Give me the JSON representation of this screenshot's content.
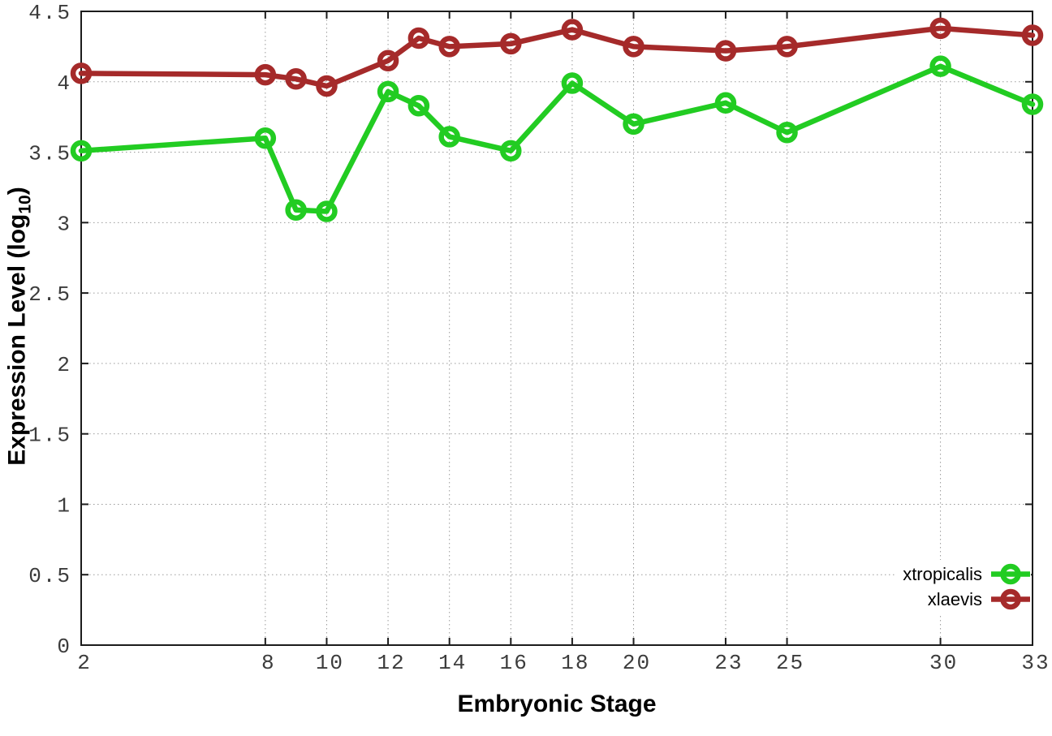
{
  "chart_data": {
    "type": "line",
    "title": "",
    "xlabel": "Embryonic Stage",
    "ylabel": "Expression Level (log10)",
    "ylabel_parts": {
      "prefix": "Expression Level (log",
      "sub": "10",
      "suffix": ")"
    },
    "xlim": [
      2,
      33
    ],
    "ylim": [
      0,
      4.5
    ],
    "grid": true,
    "legend_position": "bottom-right",
    "x_ticks": [
      {
        "v": 2,
        "label": "2"
      },
      {
        "v": 8,
        "label": "8"
      },
      {
        "v": 10,
        "label": "10"
      },
      {
        "v": 12,
        "label": "12"
      },
      {
        "v": 14,
        "label": "14"
      },
      {
        "v": 16,
        "label": "16"
      },
      {
        "v": 18,
        "label": "18"
      },
      {
        "v": 20,
        "label": "20"
      },
      {
        "v": 23,
        "label": "23"
      },
      {
        "v": 25,
        "label": "25"
      },
      {
        "v": 30,
        "label": "30"
      },
      {
        "v": 33,
        "label": "33"
      }
    ],
    "y_ticks": [
      {
        "v": 0,
        "label": "0"
      },
      {
        "v": 0.5,
        "label": "0.5"
      },
      {
        "v": 1,
        "label": "1"
      },
      {
        "v": 1.5,
        "label": "1.5"
      },
      {
        "v": 2,
        "label": "2"
      },
      {
        "v": 2.5,
        "label": "2.5"
      },
      {
        "v": 3,
        "label": "3"
      },
      {
        "v": 3.5,
        "label": "3.5"
      },
      {
        "v": 4,
        "label": "4"
      },
      {
        "v": 4.5,
        "label": "4.5"
      }
    ],
    "x": [
      2,
      8,
      9,
      10,
      12,
      13,
      14,
      16,
      18,
      20,
      23,
      25,
      30,
      33
    ],
    "series": [
      {
        "name": "xtropicalis",
        "color": "#22cc22",
        "marker": "open-circle",
        "values": [
          3.51,
          3.6,
          3.09,
          3.08,
          3.93,
          3.83,
          3.61,
          3.51,
          3.99,
          3.7,
          3.85,
          3.64,
          4.11,
          3.84
        ]
      },
      {
        "name": "xlaevis",
        "color": "#a52a2a",
        "marker": "open-circle",
        "values": [
          4.06,
          4.05,
          4.02,
          3.97,
          4.15,
          4.31,
          4.25,
          4.27,
          4.37,
          4.25,
          4.22,
          4.25,
          4.38,
          4.33
        ]
      }
    ]
  }
}
